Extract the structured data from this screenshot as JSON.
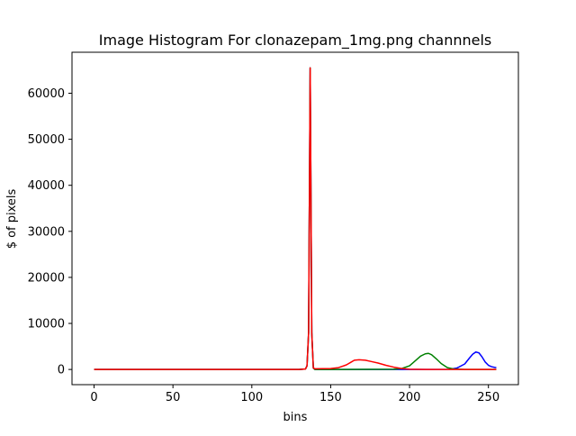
{
  "chart_data": {
    "type": "line",
    "title": "Image Histogram For clonazepam_1mg.png channnels",
    "xlabel": "bins",
    "ylabel": "$ of pixels",
    "xlim": [
      -14,
      269
    ],
    "ylim": [
      -3300,
      68900
    ],
    "x_ticks": [
      0,
      50,
      100,
      150,
      200,
      250
    ],
    "y_ticks": [
      0,
      10000,
      20000,
      30000,
      40000,
      50000,
      60000
    ],
    "grid": false,
    "series": [
      {
        "color": "#0000ff",
        "x": [
          0,
          50,
          100,
          130,
          134,
          135,
          136,
          137,
          138,
          139,
          140,
          150,
          200,
          225,
          230,
          235,
          238,
          240,
          242,
          244,
          246,
          248,
          250,
          252,
          254,
          255
        ],
        "y": [
          0,
          0,
          0,
          0,
          100,
          800,
          8000,
          65500,
          8000,
          300,
          0,
          0,
          0,
          20,
          300,
          1200,
          2500,
          3300,
          3800,
          3600,
          2700,
          1600,
          900,
          600,
          450,
          400
        ]
      },
      {
        "color": "#008000",
        "x": [
          0,
          50,
          100,
          130,
          134,
          135,
          136,
          137,
          138,
          139,
          140,
          150,
          190,
          195,
          200,
          204,
          207,
          210,
          212,
          214,
          217,
          220,
          224,
          228,
          235,
          255
        ],
        "y": [
          0,
          0,
          0,
          0,
          100,
          800,
          8000,
          65500,
          8000,
          300,
          0,
          0,
          50,
          200,
          800,
          2000,
          2900,
          3400,
          3500,
          3200,
          2300,
          1300,
          400,
          100,
          0,
          0
        ]
      },
      {
        "color": "#ff0000",
        "x": [
          0,
          50,
          100,
          130,
          134,
          135,
          136,
          137,
          138,
          139,
          140,
          150,
          155,
          160,
          163,
          165,
          168,
          172,
          176,
          180,
          185,
          190,
          195,
          200,
          210,
          255
        ],
        "y": [
          0,
          0,
          0,
          0,
          100,
          800,
          8000,
          65500,
          8000,
          300,
          150,
          200,
          400,
          1000,
          1600,
          2000,
          2100,
          2000,
          1700,
          1400,
          900,
          500,
          200,
          50,
          0,
          0
        ]
      }
    ]
  }
}
